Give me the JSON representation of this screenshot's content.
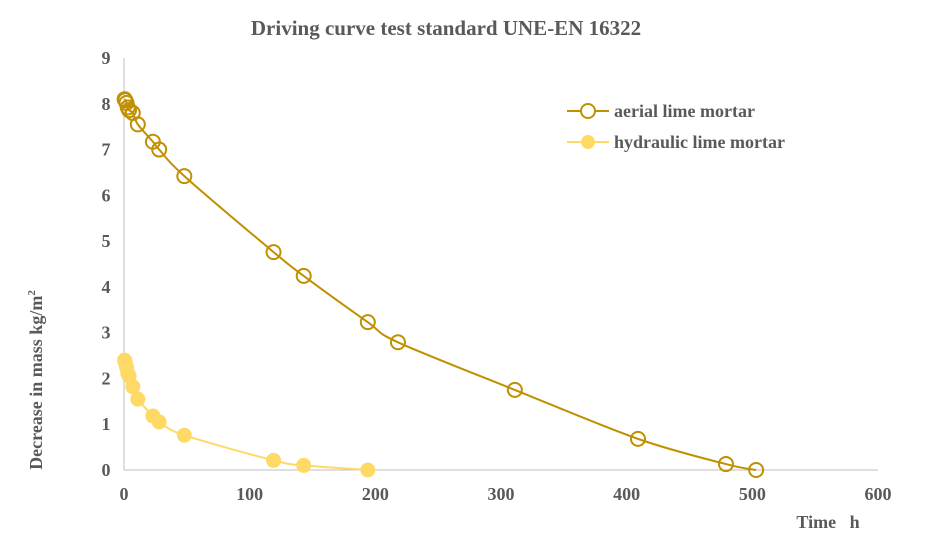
{
  "chart_data": {
    "type": "scatter",
    "title": "Driving curve test standard UNE-EN 16322",
    "xlabel": "Time   h",
    "ylabel": "Decrease in mass kg/m",
    "ylabel_sup": "2",
    "xlim": [
      0,
      600
    ],
    "ylim": [
      0,
      9
    ],
    "xticks": [
      0,
      100,
      200,
      300,
      400,
      500,
      600
    ],
    "yticks": [
      0,
      1,
      2,
      3,
      4,
      5,
      6,
      7,
      8,
      9
    ],
    "grid": false,
    "legend_position": "top-right",
    "series": [
      {
        "name": "aerial lime mortar",
        "color": "#BF9000",
        "marker": "open-circle",
        "x": [
          0.5,
          1,
          2,
          3,
          4,
          7,
          11,
          23,
          28,
          48,
          119,
          143,
          194,
          218,
          311,
          409,
          479,
          503
        ],
        "y": [
          8.1,
          8.08,
          8.02,
          7.92,
          7.86,
          7.8,
          7.55,
          7.17,
          7.0,
          6.42,
          4.76,
          4.24,
          3.23,
          2.79,
          1.75,
          0.68,
          0.13,
          0.0
        ]
      },
      {
        "name": "hydraulic lime mortar",
        "color": "#FFD966",
        "marker": "filled-circle",
        "x": [
          0.5,
          1,
          2,
          3,
          4,
          7,
          11,
          23,
          28,
          48,
          119,
          143,
          194
        ],
        "y": [
          2.4,
          2.35,
          2.25,
          2.12,
          2.05,
          1.82,
          1.55,
          1.18,
          1.05,
          0.76,
          0.21,
          0.1,
          0.0
        ]
      }
    ]
  }
}
